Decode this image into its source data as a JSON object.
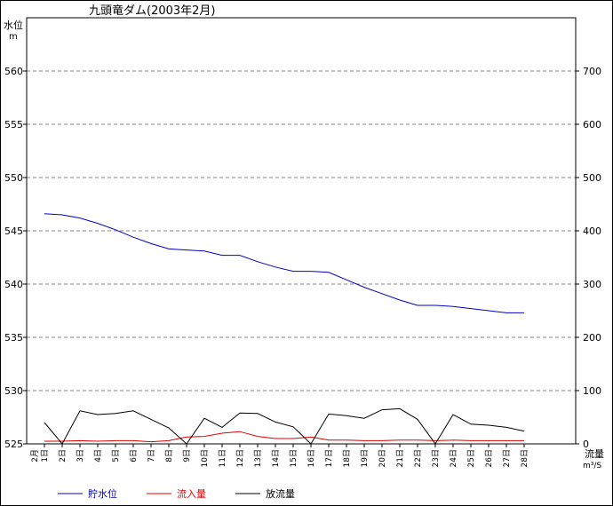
{
  "chart_data": {
    "type": "line",
    "title": "九頭竜ダム(2003年2月)",
    "left_axis_label": "水位",
    "left_axis_unit": "m",
    "right_axis_label": "流量",
    "right_axis_unit": "m³/S",
    "left_ylim": [
      525,
      565
    ],
    "left_ticks": [
      525,
      530,
      535,
      540,
      545,
      550,
      555,
      560
    ],
    "right_ylim": [
      0,
      800
    ],
    "right_ticks": [
      0,
      100,
      200,
      300,
      400,
      500,
      600,
      700
    ],
    "grid": true,
    "month_label": "2月",
    "categories": [
      "1日",
      "2日",
      "3日",
      "4日",
      "5日",
      "6日",
      "7日",
      "8日",
      "9日",
      "10日",
      "11日",
      "12日",
      "13日",
      "14日",
      "15日",
      "16日",
      "17日",
      "18日",
      "19日",
      "20日",
      "21日",
      "22日",
      "23日",
      "24日",
      "25日",
      "26日",
      "27日",
      "28日"
    ],
    "series": [
      {
        "name": "貯水位",
        "axis": "left",
        "color": "#0000cc",
        "values": [
          546.6,
          546.5,
          546.2,
          545.7,
          545.1,
          544.4,
          543.8,
          543.3,
          543.2,
          543.1,
          542.7,
          542.7,
          542.1,
          541.6,
          541.2,
          541.2,
          541.1,
          540.4,
          539.7,
          539.1,
          538.5,
          538.0,
          538.0,
          537.9,
          537.7,
          537.5,
          537.3,
          537.3
        ]
      },
      {
        "name": "流入量",
        "axis": "right",
        "color": "#dd0000",
        "values": [
          5,
          5,
          6,
          5,
          6,
          6,
          4,
          6,
          13,
          14,
          20,
          23,
          14,
          10,
          10,
          13,
          7,
          7,
          6,
          6,
          7,
          7,
          6,
          7,
          6,
          6,
          6,
          6
        ]
      },
      {
        "name": "放流量",
        "axis": "right",
        "color": "#000000",
        "values": [
          40,
          0,
          62,
          55,
          57,
          62,
          46,
          30,
          0,
          48,
          31,
          58,
          57,
          41,
          32,
          0,
          56,
          53,
          48,
          64,
          66,
          46,
          0,
          55,
          37,
          35,
          31,
          24
        ]
      }
    ]
  }
}
